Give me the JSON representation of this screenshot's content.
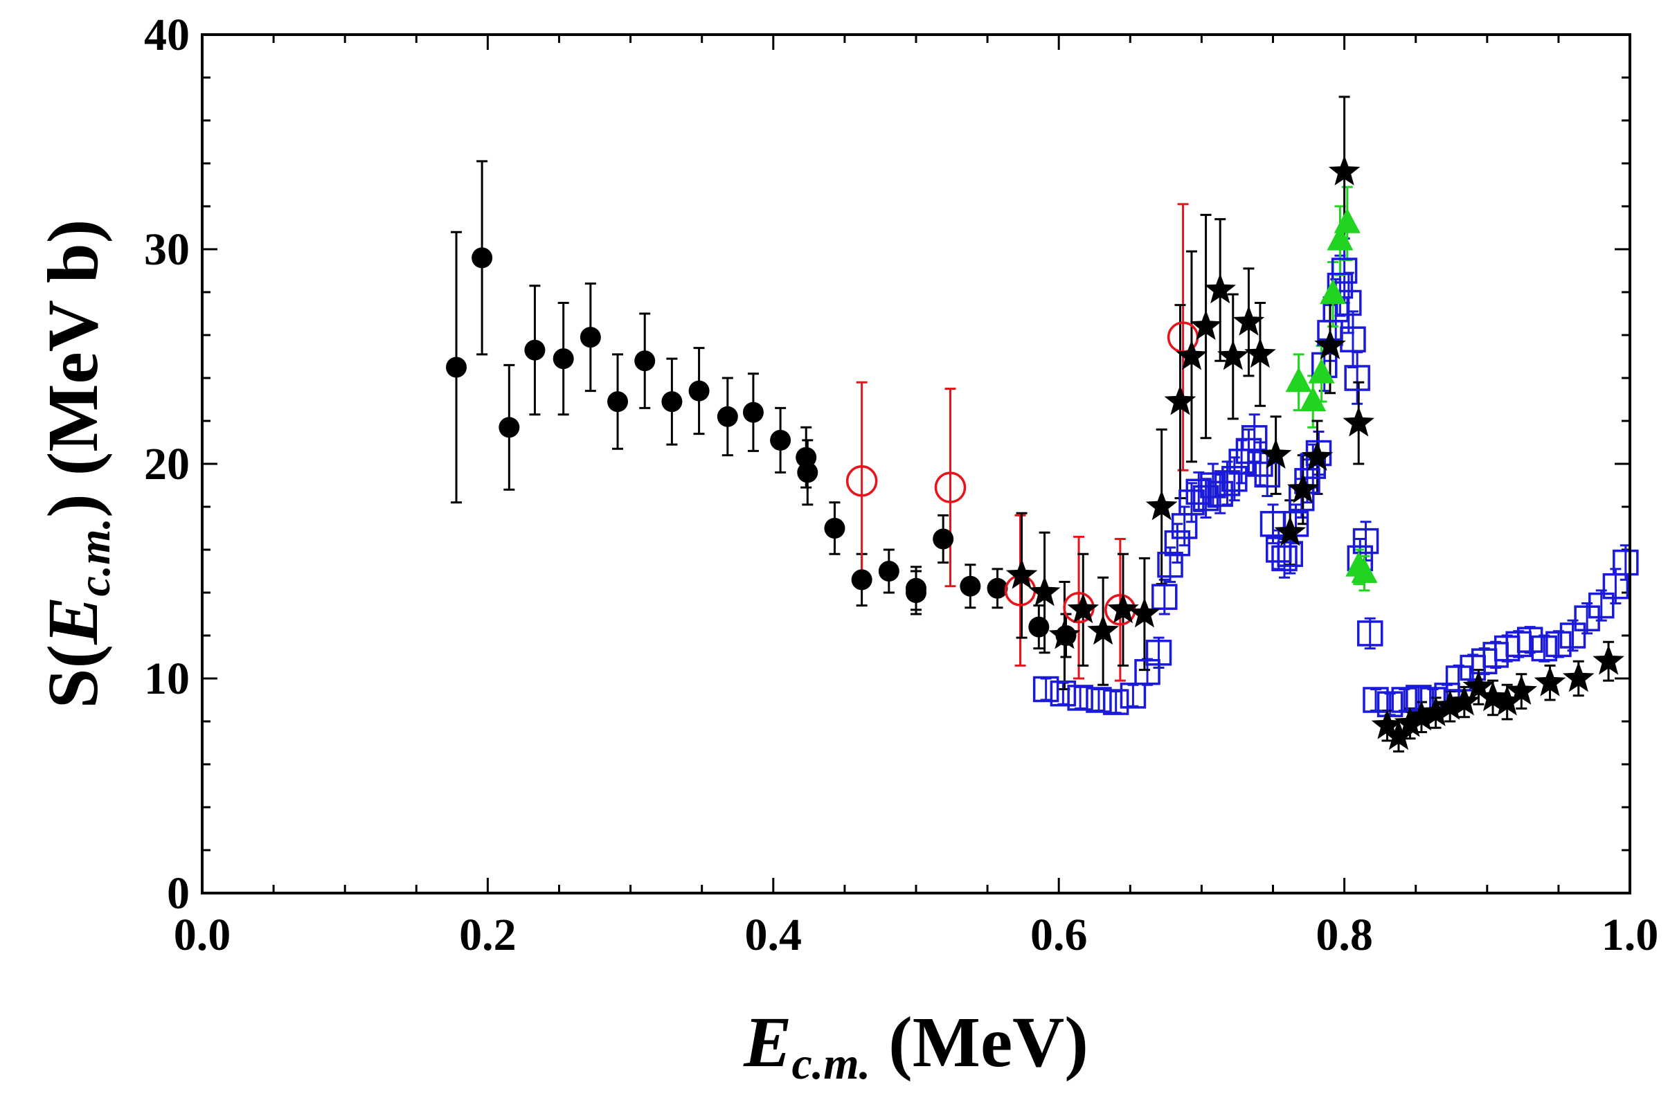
{
  "chart_data": {
    "type": "scatter",
    "title": "",
    "xlabel": {
      "main": "E",
      "sub": "c.m.",
      "unit": " (MeV)"
    },
    "ylabel": {
      "prefix": "S(",
      "main": "E",
      "sub": "c.m.",
      "suffix": ") (MeV b)"
    },
    "xlim": [
      0.0,
      1.0
    ],
    "ylim": [
      0,
      40
    ],
    "xticks": [
      0.0,
      0.2,
      0.4,
      0.6,
      0.8,
      1.0
    ],
    "xtick_labels": [
      "0.0",
      "0.2",
      "0.4",
      "0.6",
      "0.8",
      "1.0"
    ],
    "yticks": [
      0,
      10,
      20,
      30,
      40
    ],
    "ytick_labels": [
      "0",
      "10",
      "20",
      "30",
      "40"
    ],
    "grid": false,
    "colors": {
      "black": "#000000",
      "red": "#e8141b",
      "blue": "#1a1ad8",
      "green": "#22d422"
    },
    "series": [
      {
        "name": "filled-circles",
        "marker": "circle-filled",
        "color": "#000000",
        "points": [
          [
            0.178,
            24.5,
            6.3
          ],
          [
            0.196,
            29.6,
            4.5
          ],
          [
            0.215,
            21.7,
            2.9
          ],
          [
            0.233,
            25.3,
            3.0
          ],
          [
            0.253,
            24.9,
            2.6
          ],
          [
            0.272,
            25.9,
            2.5
          ],
          [
            0.291,
            22.9,
            2.2
          ],
          [
            0.31,
            24.8,
            2.2
          ],
          [
            0.329,
            22.9,
            2.0
          ],
          [
            0.348,
            23.4,
            2.0
          ],
          [
            0.368,
            22.2,
            1.8
          ],
          [
            0.386,
            22.4,
            1.8
          ],
          [
            0.405,
            21.1,
            1.5
          ],
          [
            0.423,
            20.3,
            1.4
          ],
          [
            0.424,
            19.6,
            1.5
          ],
          [
            0.443,
            17.0,
            1.2
          ],
          [
            0.462,
            14.6,
            1.2
          ],
          [
            0.481,
            15.0,
            1.0
          ],
          [
            0.5,
            14.2,
            1.0
          ],
          [
            0.5,
            14.0,
            1.0
          ],
          [
            0.519,
            16.5,
            1.1
          ],
          [
            0.538,
            14.3,
            1.0
          ],
          [
            0.557,
            14.2,
            0.9
          ],
          [
            0.586,
            12.4,
            1.0
          ],
          [
            0.605,
            12.0,
            1.0
          ]
        ]
      },
      {
        "name": "open-circles",
        "marker": "circle-open",
        "color": "#e8141b",
        "points": [
          [
            0.462,
            19.2,
            4.6
          ],
          [
            0.524,
            18.9,
            4.6
          ],
          [
            0.573,
            14.1,
            3.5
          ],
          [
            0.614,
            13.3,
            3.3
          ],
          [
            0.643,
            13.2,
            3.3
          ],
          [
            0.687,
            25.9,
            6.2
          ]
        ]
      },
      {
        "name": "open-squares",
        "marker": "square-open",
        "color": "#1a1ad8",
        "points": [
          [
            0.591,
            9.5,
            0.5
          ],
          [
            0.603,
            9.3,
            0.5
          ],
          [
            0.615,
            9.1,
            0.5
          ],
          [
            0.628,
            9.0,
            0.5
          ],
          [
            0.64,
            8.9,
            0.5
          ],
          [
            0.652,
            9.2,
            0.5
          ],
          [
            0.662,
            10.3,
            0.6
          ],
          [
            0.67,
            11.2,
            0.7
          ],
          [
            0.674,
            13.8,
            0.8
          ],
          [
            0.678,
            15.3,
            0.8
          ],
          [
            0.683,
            16.3,
            0.9
          ],
          [
            0.688,
            17.1,
            0.9
          ],
          [
            0.693,
            18.2,
            0.9
          ],
          [
            0.698,
            18.7,
            0.9
          ],
          [
            0.703,
            18.4,
            0.9
          ],
          [
            0.708,
            19.0,
            1.0
          ],
          [
            0.713,
            18.6,
            0.9
          ],
          [
            0.718,
            19.1,
            1.0
          ],
          [
            0.723,
            19.3,
            1.0
          ],
          [
            0.728,
            20.1,
            1.0
          ],
          [
            0.733,
            20.6,
            1.0
          ],
          [
            0.737,
            21.2,
            1.1
          ],
          [
            0.741,
            20.0,
            1.0
          ],
          [
            0.746,
            19.5,
            1.0
          ],
          [
            0.75,
            17.2,
            0.9
          ],
          [
            0.754,
            16.0,
            0.9
          ],
          [
            0.758,
            15.6,
            0.9
          ],
          [
            0.762,
            15.8,
            0.9
          ],
          [
            0.766,
            17.2,
            0.9
          ],
          [
            0.77,
            18.4,
            0.9
          ],
          [
            0.774,
            19.2,
            1.0
          ],
          [
            0.778,
            19.9,
            1.0
          ],
          [
            0.782,
            20.5,
            1.0
          ],
          [
            0.786,
            24.6,
            1.2
          ],
          [
            0.79,
            26.1,
            1.3
          ],
          [
            0.794,
            27.2,
            1.4
          ],
          [
            0.797,
            28.3,
            1.4
          ],
          [
            0.8,
            29.0,
            1.5
          ],
          [
            0.803,
            27.5,
            1.4
          ],
          [
            0.806,
            25.8,
            1.3
          ],
          [
            0.809,
            24.0,
            1.2
          ],
          [
            0.811,
            15.6,
            0.9
          ],
          [
            0.815,
            16.4,
            0.9
          ],
          [
            0.818,
            12.1,
            0.7
          ],
          [
            0.822,
            9.0,
            0.5
          ],
          [
            0.832,
            8.8,
            0.5
          ],
          [
            0.842,
            9.0,
            0.5
          ],
          [
            0.852,
            9.1,
            0.5
          ],
          [
            0.862,
            9.0,
            0.5
          ],
          [
            0.872,
            9.2,
            0.5
          ],
          [
            0.88,
            10.0,
            0.6
          ],
          [
            0.89,
            10.5,
            0.6
          ],
          [
            0.898,
            10.8,
            0.6
          ],
          [
            0.906,
            11.1,
            0.6
          ],
          [
            0.914,
            11.4,
            0.6
          ],
          [
            0.922,
            11.6,
            0.6
          ],
          [
            0.93,
            11.8,
            0.6
          ],
          [
            0.94,
            11.4,
            0.6
          ],
          [
            0.95,
            11.6,
            0.6
          ],
          [
            0.96,
            12.0,
            0.7
          ],
          [
            0.97,
            12.8,
            0.7
          ],
          [
            0.98,
            13.4,
            0.7
          ],
          [
            0.99,
            14.3,
            0.8
          ],
          [
            0.997,
            15.4,
            0.8
          ]
        ]
      },
      {
        "name": "triangles",
        "marker": "triangle-filled",
        "color": "#22d422",
        "points": [
          [
            0.768,
            23.8,
            1.3
          ],
          [
            0.778,
            22.9,
            1.2
          ],
          [
            0.784,
            24.2,
            1.3
          ],
          [
            0.792,
            27.9,
            1.5
          ],
          [
            0.797,
            30.4,
            1.6
          ],
          [
            0.802,
            31.2,
            1.7
          ],
          [
            0.81,
            15.2,
            0.8
          ],
          [
            0.814,
            14.9,
            0.8
          ]
        ]
      },
      {
        "name": "stars",
        "marker": "star",
        "color": "#000000",
        "points": [
          [
            0.574,
            14.8,
            2.9
          ],
          [
            0.59,
            14.0,
            2.8
          ],
          [
            0.604,
            12.0,
            2.5
          ],
          [
            0.617,
            13.2,
            2.6
          ],
          [
            0.631,
            12.2,
            2.5
          ],
          [
            0.645,
            13.2,
            2.6
          ],
          [
            0.66,
            13.0,
            2.6
          ],
          [
            0.672,
            18.0,
            3.6
          ],
          [
            0.685,
            22.9,
            4.5
          ],
          [
            0.693,
            25.0,
            4.9
          ],
          [
            0.703,
            26.4,
            5.2
          ],
          [
            0.713,
            28.1,
            3.3
          ],
          [
            0.722,
            25.0,
            2.9
          ],
          [
            0.733,
            26.6,
            2.5
          ],
          [
            0.741,
            25.1,
            2.4
          ],
          [
            0.752,
            20.4,
            1.8
          ],
          [
            0.762,
            16.8,
            1.5
          ],
          [
            0.771,
            18.8,
            1.6
          ],
          [
            0.781,
            20.3,
            1.7
          ],
          [
            0.79,
            25.5,
            2.2
          ],
          [
            0.8,
            33.6,
            3.5
          ],
          [
            0.81,
            21.9,
            1.9
          ],
          [
            0.83,
            7.8,
            0.7
          ],
          [
            0.838,
            7.3,
            0.7
          ],
          [
            0.846,
            7.9,
            0.7
          ],
          [
            0.854,
            8.2,
            0.7
          ],
          [
            0.864,
            8.4,
            0.7
          ],
          [
            0.874,
            8.7,
            0.7
          ],
          [
            0.884,
            8.9,
            0.7
          ],
          [
            0.894,
            9.6,
            0.8
          ],
          [
            0.904,
            9.1,
            0.8
          ],
          [
            0.914,
            8.9,
            0.8
          ],
          [
            0.924,
            9.4,
            0.8
          ],
          [
            0.944,
            9.8,
            0.8
          ],
          [
            0.964,
            10.0,
            0.8
          ],
          [
            0.985,
            10.8,
            0.9
          ]
        ]
      }
    ]
  }
}
